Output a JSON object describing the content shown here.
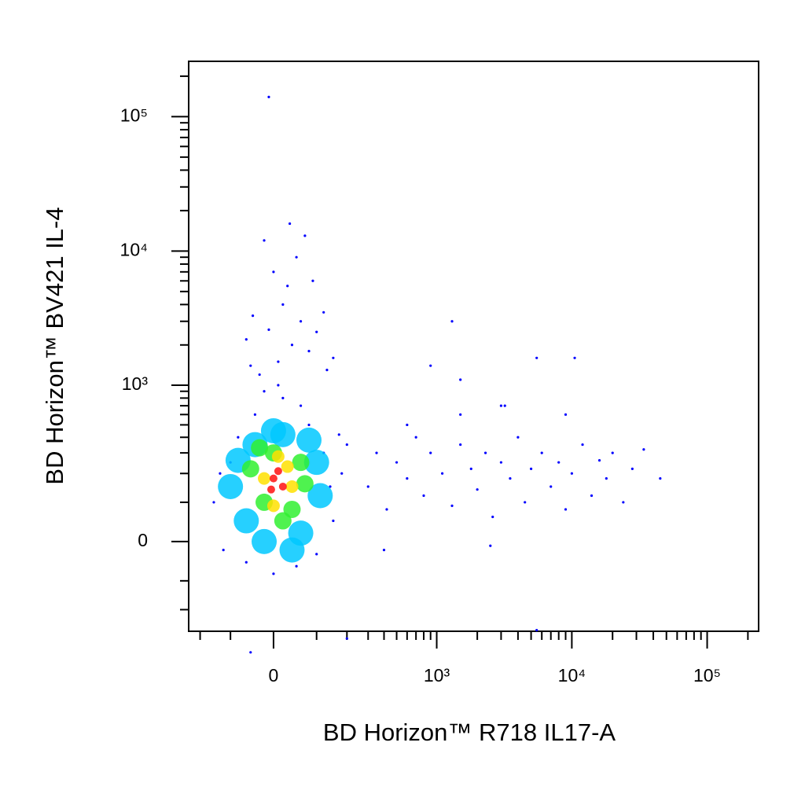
{
  "chart_data": {
    "type": "scatter",
    "x_label": "BD Horizon™ R718 IL17-A",
    "y_label": "BD Horizon™ BV421 IL-4",
    "xscale": "asinh",
    "xscale_width": 125,
    "yscale": "asinh",
    "yscale_width": 138,
    "xlim": [
      -250,
      240000
    ],
    "ylim": [
      -306,
      258000
    ],
    "xticks": [
      0,
      {
        "value": 1000,
        "label": "10³"
      },
      {
        "value": 10000,
        "label": "10⁴"
      },
      {
        "value": 100000,
        "label": "10⁵"
      }
    ],
    "yticks": [
      0,
      {
        "value": 1000,
        "label": "10³"
      },
      {
        "value": 10000,
        "label": "10⁴"
      },
      {
        "value": 100000,
        "label": "10⁵"
      }
    ],
    "xminorticks": [
      -200,
      -100,
      100,
      200,
      300,
      400,
      500,
      600,
      700,
      800,
      900,
      2000,
      3000,
      4000,
      5000,
      6000,
      7000,
      8000,
      9000,
      20000,
      30000,
      40000,
      50000,
      60000,
      70000,
      80000,
      90000,
      200000
    ],
    "yminorticks": [
      -200,
      -100,
      100,
      200,
      300,
      400,
      500,
      600,
      700,
      800,
      900,
      2000,
      3000,
      4000,
      5000,
      6000,
      7000,
      8000,
      9000,
      20000,
      30000,
      40000,
      50000,
      60000,
      70000,
      80000,
      90000,
      200000
    ],
    "series": [
      {
        "color": "#0000ff",
        "x": [
          -150,
          -120,
          -100,
          -80,
          -60,
          -40,
          0,
          20,
          50,
          80,
          120,
          150,
          180,
          200,
          -130,
          60,
          100,
          -20,
          140,
          170,
          -30,
          10,
          40,
          -10,
          60,
          20,
          80,
          -50,
          100,
          30,
          0,
          50,
          -20,
          70,
          120,
          -60,
          150,
          90,
          35,
          10,
          -45,
          130,
          300,
          350,
          420,
          500,
          600,
          700,
          800,
          900,
          1100,
          1300,
          1500,
          1800,
          2000,
          2300,
          2600,
          3000,
          3500,
          4000,
          4500,
          5000,
          6000,
          7000,
          8000,
          9000,
          10000,
          12000,
          14000,
          16000,
          18000,
          20000,
          24000,
          28000,
          34000,
          45000,
          600,
          1500,
          3200,
          9000,
          400,
          2500,
          -10,
          900,
          1300,
          5500,
          10500,
          5500,
          3000,
          1500,
          -50,
          200
        ],
        "values": [
          100,
          -20,
          250,
          400,
          -50,
          600,
          -80,
          800,
          -60,
          500,
          300,
          50,
          200,
          350,
          200,
          700,
          -30,
          900,
          150,
          420,
          1200,
          1500,
          2000,
          2600,
          3000,
          4000,
          1800,
          1400,
          2500,
          5500,
          7000,
          9000,
          12000,
          13000,
          3500,
          2200,
          1600,
          6000,
          16000,
          1000,
          3300,
          1300,
          150,
          300,
          80,
          250,
          180,
          400,
          120,
          300,
          200,
          90,
          350,
          220,
          140,
          300,
          60,
          250,
          180,
          400,
          100,
          220,
          300,
          150,
          250,
          80,
          200,
          350,
          120,
          260,
          180,
          300,
          100,
          220,
          320,
          180,
          500,
          600,
          700,
          600,
          -20,
          -10,
          140000,
          1400,
          3000,
          1600,
          1600,
          -300,
          700,
          1100,
          -450,
          -350
        ]
      },
      {
        "color": "#00c8ff",
        "x": [
          -100,
          -60,
          -40,
          0,
          40,
          80,
          110,
          100,
          -80,
          60,
          -20,
          20
        ],
        "values": [
          150,
          50,
          350,
          450,
          -20,
          380,
          120,
          250,
          260,
          20,
          0,
          420
        ]
      },
      {
        "color": "#30f030",
        "x": [
          -50,
          -20,
          0,
          40,
          60,
          -30,
          20,
          70
        ],
        "values": [
          220,
          100,
          300,
          80,
          250,
          330,
          50,
          160
        ]
      },
      {
        "color": "#ffe000",
        "x": [
          -20,
          10,
          40,
          0,
          30
        ],
        "values": [
          180,
          280,
          150,
          90,
          230
        ]
      },
      {
        "color": "#ff1010",
        "x": [
          0,
          20,
          10,
          -5
        ],
        "values": [
          180,
          150,
          210,
          140
        ]
      }
    ]
  }
}
